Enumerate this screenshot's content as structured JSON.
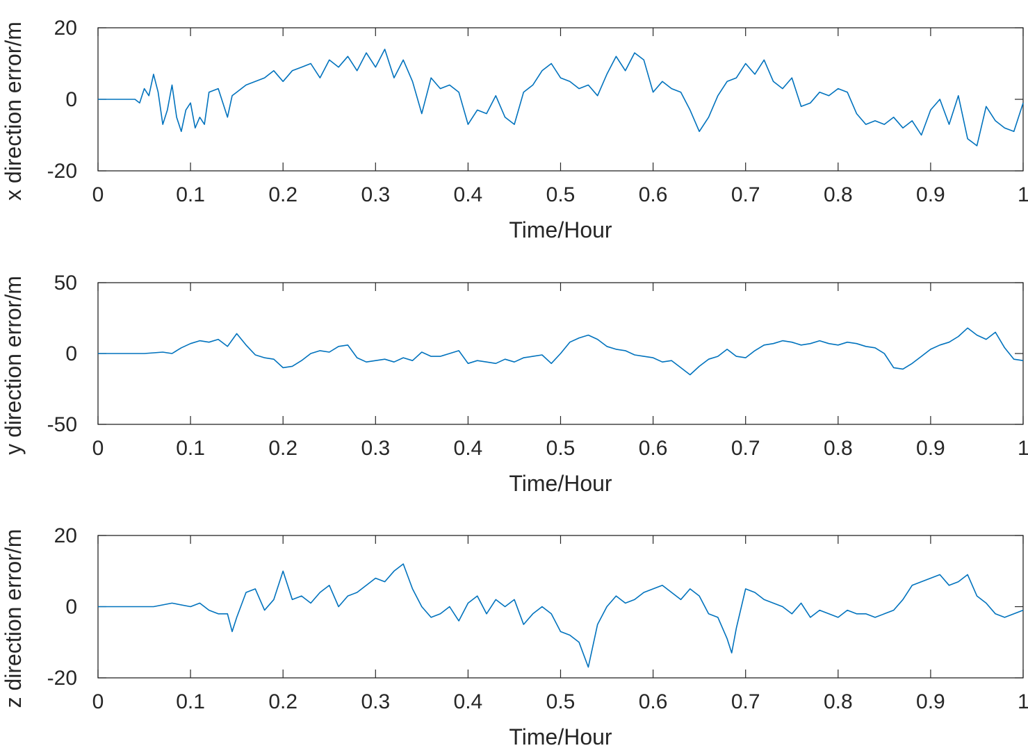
{
  "chart_data": [
    {
      "type": "line",
      "title": "",
      "xlabel": "Time/Hour",
      "ylabel": "x direction error/m",
      "xlim": [
        0,
        1
      ],
      "ylim": [
        -20,
        20
      ],
      "xticks": [
        0,
        0.1,
        0.2,
        0.3,
        0.4,
        0.5,
        0.6,
        0.7,
        0.8,
        0.9,
        1
      ],
      "xtick_labels": [
        "0",
        "0.1",
        "0.2",
        "0.3",
        "0.4",
        "0.5",
        "0.6",
        "0.7",
        "0.8",
        "0.9",
        "1"
      ],
      "yticks": [
        -20,
        0,
        20
      ],
      "ytick_labels": [
        "-20",
        "0",
        "20"
      ],
      "grid": false,
      "color": "#0072BD",
      "series": [
        {
          "name": "x direction error",
          "x": [
            0,
            0.04,
            0.045,
            0.05,
            0.055,
            0.06,
            0.065,
            0.07,
            0.075,
            0.08,
            0.085,
            0.09,
            0.095,
            0.1,
            0.105,
            0.11,
            0.115,
            0.12,
            0.13,
            0.14,
            0.145,
            0.15,
            0.16,
            0.17,
            0.18,
            0.19,
            0.2,
            0.21,
            0.22,
            0.23,
            0.24,
            0.25,
            0.26,
            0.27,
            0.28,
            0.29,
            0.3,
            0.31,
            0.32,
            0.33,
            0.34,
            0.35,
            0.36,
            0.37,
            0.38,
            0.39,
            0.4,
            0.41,
            0.42,
            0.43,
            0.44,
            0.45,
            0.46,
            0.47,
            0.48,
            0.49,
            0.5,
            0.51,
            0.52,
            0.53,
            0.54,
            0.55,
            0.56,
            0.57,
            0.58,
            0.59,
            0.6,
            0.61,
            0.62,
            0.63,
            0.64,
            0.65,
            0.66,
            0.67,
            0.68,
            0.69,
            0.7,
            0.71,
            0.72,
            0.73,
            0.74,
            0.75,
            0.76,
            0.77,
            0.78,
            0.79,
            0.8,
            0.81,
            0.82,
            0.83,
            0.84,
            0.85,
            0.86,
            0.87,
            0.88,
            0.89,
            0.9,
            0.91,
            0.92,
            0.93,
            0.94,
            0.95,
            0.96,
            0.97,
            0.98,
            0.99,
            1.0
          ],
          "y": [
            0,
            0,
            -1,
            3,
            1,
            7,
            2,
            -7,
            -3,
            4,
            -5,
            -9,
            -3,
            -1,
            -8,
            -5,
            -7,
            2,
            3,
            -5,
            1,
            2,
            4,
            5,
            6,
            8,
            5,
            8,
            9,
            10,
            6,
            11,
            9,
            12,
            8,
            13,
            9,
            14,
            6,
            11,
            5,
            -4,
            6,
            3,
            4,
            2,
            -7,
            -3,
            -4,
            1,
            -5,
            -7,
            2,
            4,
            8,
            10,
            6,
            5,
            3,
            4,
            1,
            7,
            12,
            8,
            13,
            11,
            2,
            5,
            3,
            2,
            -3,
            -9,
            -5,
            1,
            5,
            6,
            10,
            7,
            11,
            5,
            3,
            6,
            -2,
            -1,
            2,
            1,
            3,
            2,
            -4,
            -7,
            -6,
            -7,
            -5,
            -8,
            -6,
            -10,
            -3,
            0,
            -7,
            1,
            -11,
            -13,
            -2,
            -6,
            -8,
            -9,
            -1
          ]
        }
      ]
    },
    {
      "type": "line",
      "title": "",
      "xlabel": "Time/Hour",
      "ylabel": "y direction error/m",
      "xlim": [
        0,
        1
      ],
      "ylim": [
        -50,
        50
      ],
      "xticks": [
        0,
        0.1,
        0.2,
        0.3,
        0.4,
        0.5,
        0.6,
        0.7,
        0.8,
        0.9,
        1
      ],
      "xtick_labels": [
        "0",
        "0.1",
        "0.2",
        "0.3",
        "0.4",
        "0.5",
        "0.6",
        "0.7",
        "0.8",
        "0.9",
        "1"
      ],
      "yticks": [
        -50,
        0,
        50
      ],
      "ytick_labels": [
        "-50",
        "0",
        "50"
      ],
      "grid": false,
      "color": "#0072BD",
      "series": [
        {
          "name": "y direction error",
          "x": [
            0,
            0.05,
            0.07,
            0.08,
            0.09,
            0.1,
            0.11,
            0.12,
            0.13,
            0.14,
            0.15,
            0.16,
            0.17,
            0.18,
            0.19,
            0.2,
            0.21,
            0.22,
            0.23,
            0.24,
            0.25,
            0.26,
            0.27,
            0.28,
            0.29,
            0.3,
            0.31,
            0.32,
            0.33,
            0.34,
            0.35,
            0.36,
            0.37,
            0.38,
            0.39,
            0.4,
            0.41,
            0.42,
            0.43,
            0.44,
            0.45,
            0.46,
            0.47,
            0.48,
            0.49,
            0.5,
            0.51,
            0.52,
            0.53,
            0.54,
            0.55,
            0.56,
            0.57,
            0.58,
            0.59,
            0.6,
            0.61,
            0.62,
            0.63,
            0.64,
            0.65,
            0.66,
            0.67,
            0.68,
            0.69,
            0.7,
            0.71,
            0.72,
            0.73,
            0.74,
            0.75,
            0.76,
            0.77,
            0.78,
            0.79,
            0.8,
            0.81,
            0.82,
            0.83,
            0.84,
            0.85,
            0.86,
            0.87,
            0.88,
            0.89,
            0.9,
            0.91,
            0.92,
            0.93,
            0.94,
            0.95,
            0.96,
            0.97,
            0.98,
            0.99,
            1.0
          ],
          "y": [
            0,
            0,
            1,
            0,
            4,
            7,
            9,
            8,
            10,
            5,
            14,
            6,
            -1,
            -3,
            -4,
            -10,
            -9,
            -5,
            0,
            2,
            1,
            5,
            6,
            -3,
            -6,
            -5,
            -4,
            -6,
            -3,
            -5,
            1,
            -2,
            -2,
            0,
            2,
            -7,
            -5,
            -6,
            -7,
            -4,
            -6,
            -3,
            -2,
            -1,
            -7,
            0,
            8,
            11,
            13,
            10,
            5,
            3,
            2,
            -1,
            -2,
            -3,
            -6,
            -5,
            -10,
            -15,
            -9,
            -4,
            -2,
            3,
            -2,
            -3,
            2,
            6,
            7,
            9,
            8,
            6,
            7,
            9,
            7,
            6,
            8,
            7,
            5,
            4,
            0,
            -10,
            -11,
            -7,
            -2,
            3,
            6,
            8,
            12,
            18,
            13,
            10,
            15,
            4,
            -4,
            -5
          ]
        }
      ]
    },
    {
      "type": "line",
      "title": "",
      "xlabel": "Time/Hour",
      "ylabel": "z direction error/m",
      "xlim": [
        0,
        1
      ],
      "ylim": [
        -20,
        20
      ],
      "xticks": [
        0,
        0.1,
        0.2,
        0.3,
        0.4,
        0.5,
        0.6,
        0.7,
        0.8,
        0.9,
        1
      ],
      "xtick_labels": [
        "0",
        "0.1",
        "0.2",
        "0.3",
        "0.4",
        "0.5",
        "0.6",
        "0.7",
        "0.8",
        "0.9",
        "1"
      ],
      "yticks": [
        -20,
        0,
        20
      ],
      "ytick_labels": [
        "-20",
        "0",
        "20"
      ],
      "grid": false,
      "color": "#0072BD",
      "series": [
        {
          "name": "z direction error",
          "x": [
            0,
            0.06,
            0.08,
            0.1,
            0.11,
            0.12,
            0.13,
            0.14,
            0.145,
            0.15,
            0.16,
            0.17,
            0.18,
            0.19,
            0.2,
            0.21,
            0.22,
            0.23,
            0.24,
            0.25,
            0.26,
            0.27,
            0.28,
            0.29,
            0.3,
            0.31,
            0.32,
            0.33,
            0.34,
            0.35,
            0.36,
            0.37,
            0.38,
            0.39,
            0.4,
            0.41,
            0.42,
            0.43,
            0.44,
            0.45,
            0.46,
            0.47,
            0.48,
            0.49,
            0.5,
            0.51,
            0.52,
            0.53,
            0.54,
            0.55,
            0.56,
            0.57,
            0.58,
            0.59,
            0.6,
            0.61,
            0.62,
            0.63,
            0.64,
            0.65,
            0.66,
            0.67,
            0.68,
            0.685,
            0.69,
            0.7,
            0.71,
            0.72,
            0.73,
            0.74,
            0.75,
            0.76,
            0.77,
            0.78,
            0.79,
            0.8,
            0.81,
            0.82,
            0.83,
            0.84,
            0.85,
            0.86,
            0.87,
            0.88,
            0.89,
            0.9,
            0.91,
            0.92,
            0.93,
            0.94,
            0.95,
            0.96,
            0.97,
            0.98,
            0.99,
            1.0
          ],
          "y": [
            0,
            0,
            1,
            0,
            1,
            -1,
            -2,
            -2,
            -7,
            -3,
            4,
            5,
            -1,
            2,
            10,
            2,
            3,
            1,
            4,
            6,
            0,
            3,
            4,
            6,
            8,
            7,
            10,
            12,
            5,
            0,
            -3,
            -2,
            0,
            -4,
            1,
            3,
            -2,
            2,
            0,
            2,
            -5,
            -2,
            0,
            -2,
            -7,
            -8,
            -10,
            -17,
            -5,
            0,
            3,
            1,
            2,
            4,
            5,
            6,
            4,
            2,
            5,
            3,
            -2,
            -3,
            -9,
            -13,
            -6,
            5,
            4,
            2,
            1,
            0,
            -2,
            1,
            -3,
            -1,
            -2,
            -3,
            -1,
            -2,
            -2,
            -3,
            -2,
            -1,
            2,
            6,
            7,
            8,
            9,
            6,
            7,
            9,
            3,
            1,
            -2,
            -3,
            -2,
            -1
          ]
        }
      ]
    }
  ]
}
